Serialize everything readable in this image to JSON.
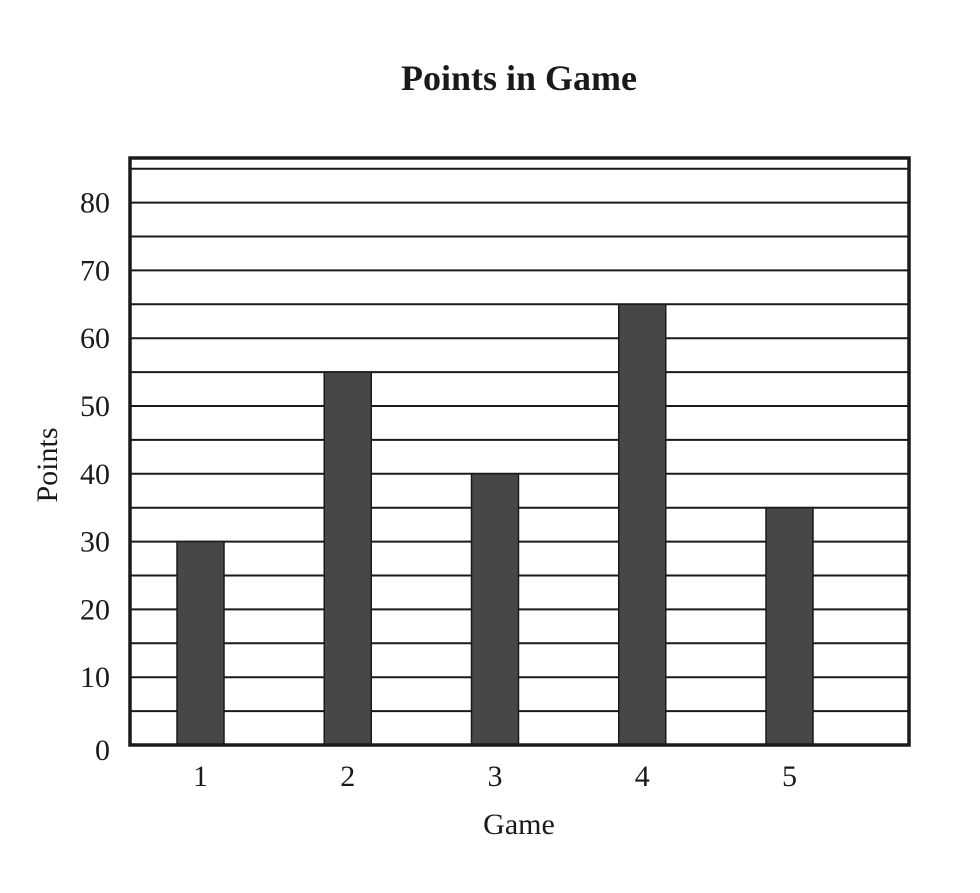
{
  "chart_data": {
    "type": "bar",
    "title": "Points in Game",
    "xlabel": "Game",
    "ylabel": "Points",
    "categories": [
      "1",
      "2",
      "3",
      "4",
      "5"
    ],
    "values": [
      30,
      55,
      40,
      65,
      35
    ],
    "ylim": [
      0,
      86
    ],
    "yticks": [
      0,
      10,
      20,
      30,
      40,
      50,
      60,
      70,
      80
    ],
    "yticks_labels": [
      "0",
      "10",
      "20",
      "30",
      "40",
      "50",
      "60",
      "70",
      "80"
    ],
    "minor_grid_step": 5,
    "grid": true,
    "legend": "none",
    "bar_color": "#474747"
  }
}
